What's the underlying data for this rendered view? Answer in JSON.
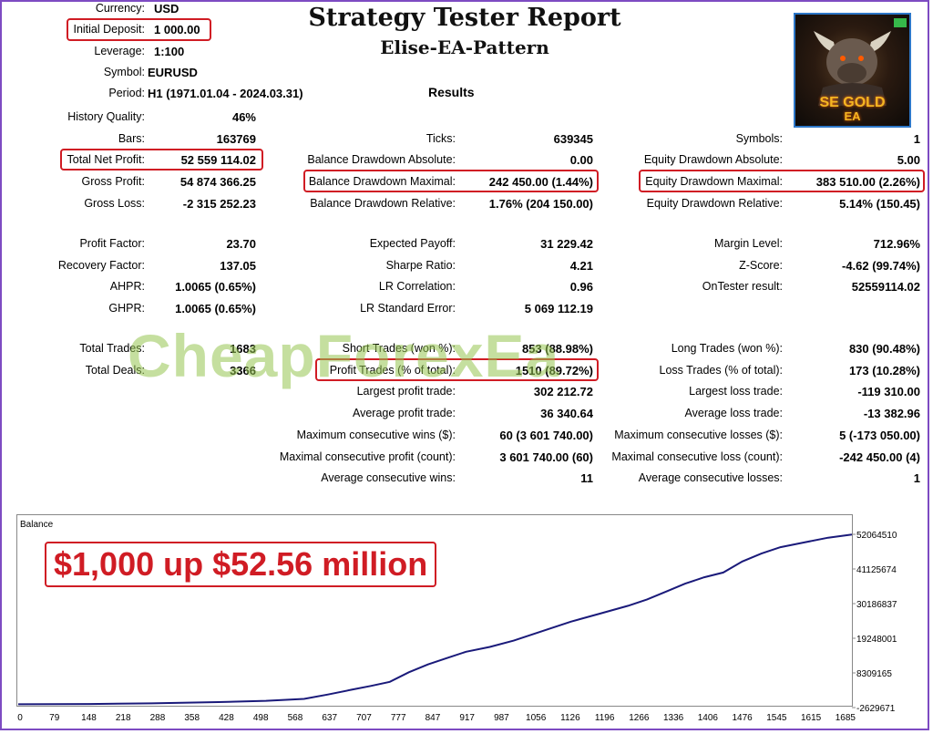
{
  "report": {
    "title": "Strategy Tester Report",
    "subtitle": "Elise-EA-Pattern",
    "results_heading": "Results"
  },
  "settings": {
    "currency": {
      "label": "Currency:",
      "value": "USD"
    },
    "initial_deposit": {
      "label": "Initial Deposit:",
      "value": "1 000.00"
    },
    "leverage": {
      "label": "Leverage:",
      "value": "1:100"
    },
    "symbol": {
      "label": "Symbol:",
      "value": "EURUSD"
    },
    "period": {
      "label": "Period:",
      "value": "H1 (1971.01.04 - 2024.03.31)"
    }
  },
  "col1": [
    {
      "label": "History Quality:",
      "value": "46%"
    },
    {
      "label": "Bars:",
      "value": "163769"
    },
    {
      "label": "Total Net Profit:",
      "value": "52 559 114.02"
    },
    {
      "label": "Gross Profit:",
      "value": "54 874 366.25"
    },
    {
      "label": "Gross Loss:",
      "value": "-2 315 252.23"
    },
    {
      "label": "Profit Factor:",
      "value": "23.70"
    },
    {
      "label": "Recovery Factor:",
      "value": "137.05"
    },
    {
      "label": "AHPR:",
      "value": "1.0065 (0.65%)"
    },
    {
      "label": "GHPR:",
      "value": "1.0065 (0.65%)"
    },
    {
      "label": "Total Trades:",
      "value": "1683"
    },
    {
      "label": "Total Deals:",
      "value": "3366"
    }
  ],
  "col2": [
    {
      "label": "Ticks:",
      "value": "639345"
    },
    {
      "label": "Balance Drawdown Absolute:",
      "value": "0.00"
    },
    {
      "label": "Balance Drawdown Maximal:",
      "value": "242 450.00 (1.44%)"
    },
    {
      "label": "Balance Drawdown Relative:",
      "value": "1.76% (204 150.00)"
    },
    {
      "label": "Expected Payoff:",
      "value": "31 229.42"
    },
    {
      "label": "Sharpe Ratio:",
      "value": "4.21"
    },
    {
      "label": "LR Correlation:",
      "value": "0.96"
    },
    {
      "label": "LR Standard Error:",
      "value": "5 069 112.19"
    },
    {
      "label": "Short Trades (won %):",
      "value": "853 (88.98%)"
    },
    {
      "label": "Profit Trades (% of total):",
      "value": "1510 (89.72%)"
    },
    {
      "label": "Largest profit trade:",
      "value": "302 212.72"
    },
    {
      "label": "Average profit trade:",
      "value": "36 340.64"
    },
    {
      "label": "Maximum consecutive wins ($):",
      "value": "60 (3 601 740.00)"
    },
    {
      "label": "Maximal consecutive profit (count):",
      "value": "3 601 740.00 (60)"
    },
    {
      "label": "Average consecutive wins:",
      "value": "11"
    }
  ],
  "col3": [
    {
      "label": "Symbols:",
      "value": "1"
    },
    {
      "label": "Equity Drawdown Absolute:",
      "value": "5.00"
    },
    {
      "label": "Equity Drawdown Maximal:",
      "value": "383 510.00 (2.26%)"
    },
    {
      "label": "Equity Drawdown Relative:",
      "value": "5.14% (150.45)"
    },
    {
      "label": "Margin Level:",
      "value": "712.96%"
    },
    {
      "label": "Z-Score:",
      "value": "-4.62 (99.74%)"
    },
    {
      "label": "OnTester result:",
      "value": "52559114.02"
    },
    {
      "label": "Long Trades (won %):",
      "value": "830 (90.48%)"
    },
    {
      "label": "Loss Trades (% of total):",
      "value": "173 (10.28%)"
    },
    {
      "label": "Largest loss trade:",
      "value": "-119 310.00"
    },
    {
      "label": "Average loss trade:",
      "value": "-13 382.96"
    },
    {
      "label": "Maximum consecutive losses ($):",
      "value": "5 (-173 050.00)"
    },
    {
      "label": "Maximal consecutive loss (count):",
      "value": "-242 450.00 (4)"
    },
    {
      "label": "Average consecutive losses:",
      "value": "1"
    }
  ],
  "logo": {
    "line1": "SE GOLD",
    "line2": "EA"
  },
  "watermark": "CheapForexEa",
  "caption": "$1,000 up $52.56 million",
  "colors": {
    "highlight": "#d01c24",
    "line": "#1a1a7a",
    "watermark": "#96c450",
    "caption": "#d01c24"
  },
  "chart_data": {
    "type": "line",
    "title": "Balance",
    "x_ticks": [
      "0",
      "79",
      "148",
      "218",
      "288",
      "358",
      "428",
      "498",
      "568",
      "637",
      "707",
      "777",
      "847",
      "917",
      "987",
      "1056",
      "1126",
      "1196",
      "1266",
      "1336",
      "1406",
      "1476",
      "1545",
      "1615",
      "1685"
    ],
    "y_ticks": [
      "52064510",
      "41125674",
      "30186837",
      "19248001",
      "8309165",
      "-2629671"
    ],
    "ylim": [
      -2629671,
      52064510
    ],
    "xlim": [
      0,
      1750
    ],
    "series": [
      {
        "x": [
          0,
          150,
          280,
          420,
          520,
          600,
          650,
          700,
          740,
          780,
          820,
          860,
          900,
          940,
          990,
          1040,
          1100,
          1160,
          1220,
          1280,
          1320,
          1360,
          1400,
          1440,
          1480,
          1520,
          1560,
          1600,
          1650,
          1700,
          1750
        ],
        "y": [
          -1600000,
          -1500000,
          -1300000,
          -900000,
          -500000,
          100000,
          1500000,
          3000000,
          4200000,
          5500000,
          8500000,
          11000000,
          13000000,
          15000000,
          16500000,
          18500000,
          21500000,
          24500000,
          27000000,
          29500000,
          31500000,
          34000000,
          36500000,
          38500000,
          40000000,
          43500000,
          46000000,
          48000000,
          49500000,
          51000000,
          52000000
        ]
      }
    ]
  }
}
